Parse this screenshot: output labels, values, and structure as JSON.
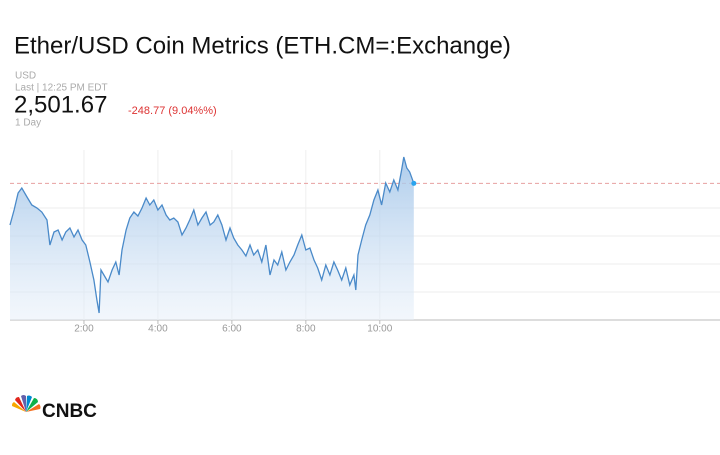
{
  "chart_data": {
    "type": "line",
    "title": "Ether/USD Coin Metrics (ETH.CM=:Exchange)",
    "currency": "USD",
    "last_label": "Last | 12:25 PM EDT",
    "last_price": "2,501.67",
    "change": "-248.77 (9.04%%)",
    "period": "1 Day",
    "color": "#4a8ac9",
    "x": [
      0,
      0.11,
      0.22,
      0.32,
      0.46,
      0.59,
      0.73,
      0.86,
      1.0,
      1.08,
      1.19,
      1.3,
      1.41,
      1.51,
      1.62,
      1.73,
      1.84,
      1.95,
      2.05,
      2.16,
      2.27,
      2.35,
      2.41,
      2.46,
      2.54,
      2.65,
      2.76,
      2.86,
      2.95,
      3.03,
      3.14,
      3.24,
      3.35,
      3.46,
      3.57,
      3.68,
      3.78,
      3.89,
      4.0,
      4.11,
      4.22,
      4.32,
      4.43,
      4.54,
      4.65,
      4.76,
      4.86,
      4.97,
      5.08,
      5.19,
      5.3,
      5.41,
      5.51,
      5.62,
      5.73,
      5.84,
      5.95,
      6.05,
      6.16,
      6.27,
      6.38,
      6.49,
      6.59,
      6.7,
      6.81,
      6.92,
      7.03,
      7.14,
      7.24,
      7.35,
      7.46,
      7.57,
      7.68,
      7.78,
      7.89,
      8.0,
      8.11,
      8.22,
      8.32,
      8.43,
      8.54,
      8.65,
      8.76,
      8.86,
      8.97,
      9.08,
      9.19,
      9.3,
      9.35,
      9.41,
      9.51,
      9.62,
      9.73,
      9.84,
      9.95,
      10.05,
      10.16,
      10.27,
      10.38,
      10.49,
      10.59,
      10.65,
      10.73,
      10.81,
      10.92
    ],
    "values": [
      2460,
      2475,
      2492,
      2497,
      2488,
      2480,
      2477,
      2473,
      2465,
      2440,
      2453,
      2455,
      2445,
      2453,
      2457,
      2448,
      2455,
      2445,
      2440,
      2423,
      2405,
      2385,
      2372,
      2415,
      2410,
      2403,
      2415,
      2423,
      2410,
      2435,
      2455,
      2467,
      2473,
      2469,
      2477,
      2487,
      2480,
      2485,
      2475,
      2480,
      2470,
      2465,
      2467,
      2463,
      2450,
      2457,
      2465,
      2475,
      2460,
      2467,
      2473,
      2460,
      2463,
      2470,
      2460,
      2445,
      2457,
      2447,
      2440,
      2435,
      2429,
      2440,
      2430,
      2435,
      2423,
      2440,
      2410,
      2425,
      2420,
      2433,
      2415,
      2423,
      2430,
      2440,
      2450,
      2435,
      2437,
      2425,
      2417,
      2405,
      2420,
      2410,
      2423,
      2415,
      2405,
      2417,
      2400,
      2410,
      2395,
      2430,
      2445,
      2460,
      2470,
      2485,
      2495,
      2480,
      2502,
      2493,
      2505,
      2495,
      2515,
      2528,
      2517,
      2513,
      2501.67
    ],
    "xlim": [
      0,
      19.2
    ],
    "ylim": [
      2365,
      2535
    ],
    "xticks": [
      {
        "value": 2,
        "label": "2:00"
      },
      {
        "value": 4,
        "label": "4:00"
      },
      {
        "value": 6,
        "label": "6:00"
      },
      {
        "value": 8,
        "label": "8:00"
      },
      {
        "value": 10,
        "label": "10:00"
      }
    ],
    "grid": true
  },
  "logo": "CNBC"
}
